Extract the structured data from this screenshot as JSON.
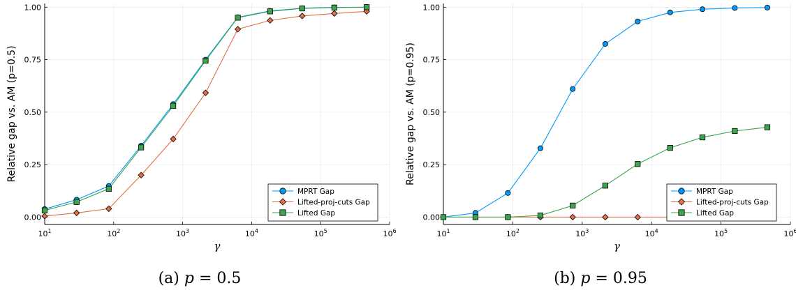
{
  "chart_data": [
    {
      "type": "line",
      "caption": "(a) p = 0.5",
      "caption_parts": [
        "(a) ",
        "p",
        " = 0.5"
      ],
      "xlabel": "γ",
      "ylabel": "Relative gap vs. AM (p=0.5)",
      "xscale": "log",
      "xlim": [
        10,
        1000000
      ],
      "ylim": [
        0,
        1
      ],
      "x_ticks": [
        10,
        100,
        1000,
        10000,
        100000,
        1000000
      ],
      "x_tick_base": "10",
      "x_tick_exponents": [
        "1",
        "2",
        "3",
        "4",
        "5",
        "6"
      ],
      "y_ticks": [
        "0.00",
        "0.25",
        "0.50",
        "0.75",
        "1.00"
      ],
      "grid": true,
      "legend_position": "bottom-right",
      "x": [
        10,
        29,
        85,
        250,
        730,
        2150,
        6300,
        18500,
        54000,
        158000,
        465000
      ],
      "series": [
        {
          "name": "MPRT Gap",
          "color": "#009AFA",
          "marker": "circle",
          "values": [
            0.038,
            0.083,
            0.148,
            0.34,
            0.538,
            0.75,
            0.952,
            0.982,
            0.995,
            0.999,
            1.0
          ]
        },
        {
          "name": "Lifted-proj-cuts Gap",
          "color": "#E36F47",
          "marker": "diamond",
          "values": [
            0.005,
            0.02,
            0.04,
            0.2,
            0.372,
            0.592,
            0.895,
            0.937,
            0.958,
            0.97,
            0.98
          ]
        },
        {
          "name": "Lifted Gap",
          "color": "#3EA44E",
          "marker": "square",
          "values": [
            0.032,
            0.072,
            0.135,
            0.332,
            0.53,
            0.745,
            0.95,
            0.98,
            0.994,
            0.998,
            1.0
          ]
        }
      ]
    },
    {
      "type": "line",
      "caption": "(b) p = 0.95",
      "caption_parts": [
        "(b) ",
        "p",
        " = 0.95"
      ],
      "xlabel": "γ",
      "ylabel": "Relative gap vs. AM (p=0.95)",
      "xscale": "log",
      "xlim": [
        10,
        1000000
      ],
      "ylim": [
        0,
        1
      ],
      "x_ticks": [
        10,
        100,
        1000,
        10000,
        100000,
        1000000
      ],
      "x_tick_base": "10",
      "x_tick_exponents": [
        "1",
        "2",
        "3",
        "4",
        "5",
        "6"
      ],
      "y_ticks": [
        "0.00",
        "0.25",
        "0.50",
        "0.75",
        "1.00"
      ],
      "grid": true,
      "legend_position": "bottom-right",
      "x": [
        10,
        29,
        85,
        250,
        730,
        2150,
        6300,
        18500,
        54000,
        158000,
        465000
      ],
      "series": [
        {
          "name": "MPRT Gap",
          "color": "#009AFA",
          "marker": "circle",
          "values": [
            0.0,
            0.02,
            0.115,
            0.328,
            0.61,
            0.825,
            0.932,
            0.975,
            0.99,
            0.996,
            0.998
          ]
        },
        {
          "name": "Lifted-proj-cuts Gap",
          "color": "#E36F47",
          "marker": "diamond",
          "values": [
            0.0,
            0.0,
            0.0,
            0.0,
            0.0,
            0.0,
            0.0,
            0.0,
            0.0,
            0.0,
            0.0
          ]
        },
        {
          "name": "Lifted Gap",
          "color": "#3EA44E",
          "marker": "square",
          "values": [
            0.0,
            0.0,
            0.0,
            0.008,
            0.055,
            0.15,
            0.253,
            0.33,
            0.38,
            0.41,
            0.428
          ]
        }
      ]
    }
  ]
}
